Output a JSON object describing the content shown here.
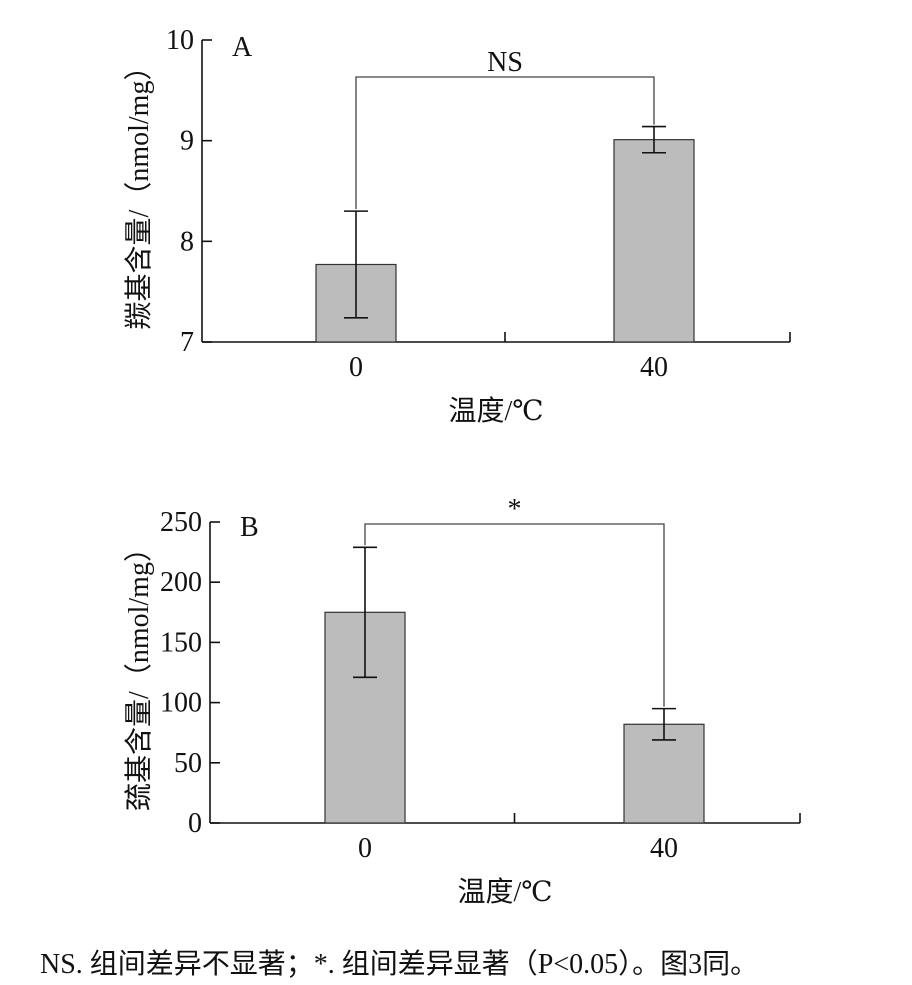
{
  "chart_data": [
    {
      "type": "bar",
      "panel_label": "A",
      "categories": [
        "0",
        "40"
      ],
      "values": [
        7.77,
        9.01
      ],
      "errors": [
        0.53,
        0.13
      ],
      "xlabel": "温度/℃",
      "ylabel": "羰基含量/（nmol/mg）",
      "ylim": [
        7,
        10
      ],
      "yticks": [
        7,
        8,
        9,
        10
      ],
      "significance": "NS",
      "bar_color": "#bcbcbc"
    },
    {
      "type": "bar",
      "panel_label": "B",
      "categories": [
        "0",
        "40"
      ],
      "values": [
        175,
        82
      ],
      "errors": [
        54,
        13
      ],
      "xlabel": "温度/℃",
      "ylabel": "巯基含量/（nmol/mg）",
      "ylim": [
        0,
        250
      ],
      "yticks": [
        0,
        50,
        100,
        150,
        200,
        250
      ],
      "significance": "*",
      "bar_color": "#bcbcbc"
    }
  ],
  "caption": "NS. 组间差异不显著；*. 组间差异显著（P<0.05）。图3同。"
}
